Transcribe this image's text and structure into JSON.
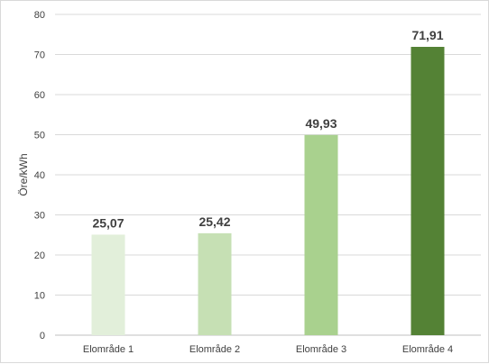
{
  "chart_data": {
    "type": "bar",
    "categories": [
      "Elområde 1",
      "Elområde 2",
      "Elområde 3",
      "Elområde 4"
    ],
    "values": [
      25.07,
      25.42,
      49.93,
      71.91
    ],
    "value_labels": [
      "25,07",
      "25,42",
      "49,93",
      "71,91"
    ],
    "bar_colors": [
      "#e2efda",
      "#c6e0b4",
      "#a9d18e",
      "#548235"
    ],
    "ylabel": "Öre/kWh",
    "xlabel": "",
    "title": "",
    "ylim": [
      0,
      80
    ],
    "yticks": [
      0,
      10,
      20,
      30,
      40,
      50,
      60,
      70,
      80
    ],
    "grid": true,
    "legend": "none"
  }
}
